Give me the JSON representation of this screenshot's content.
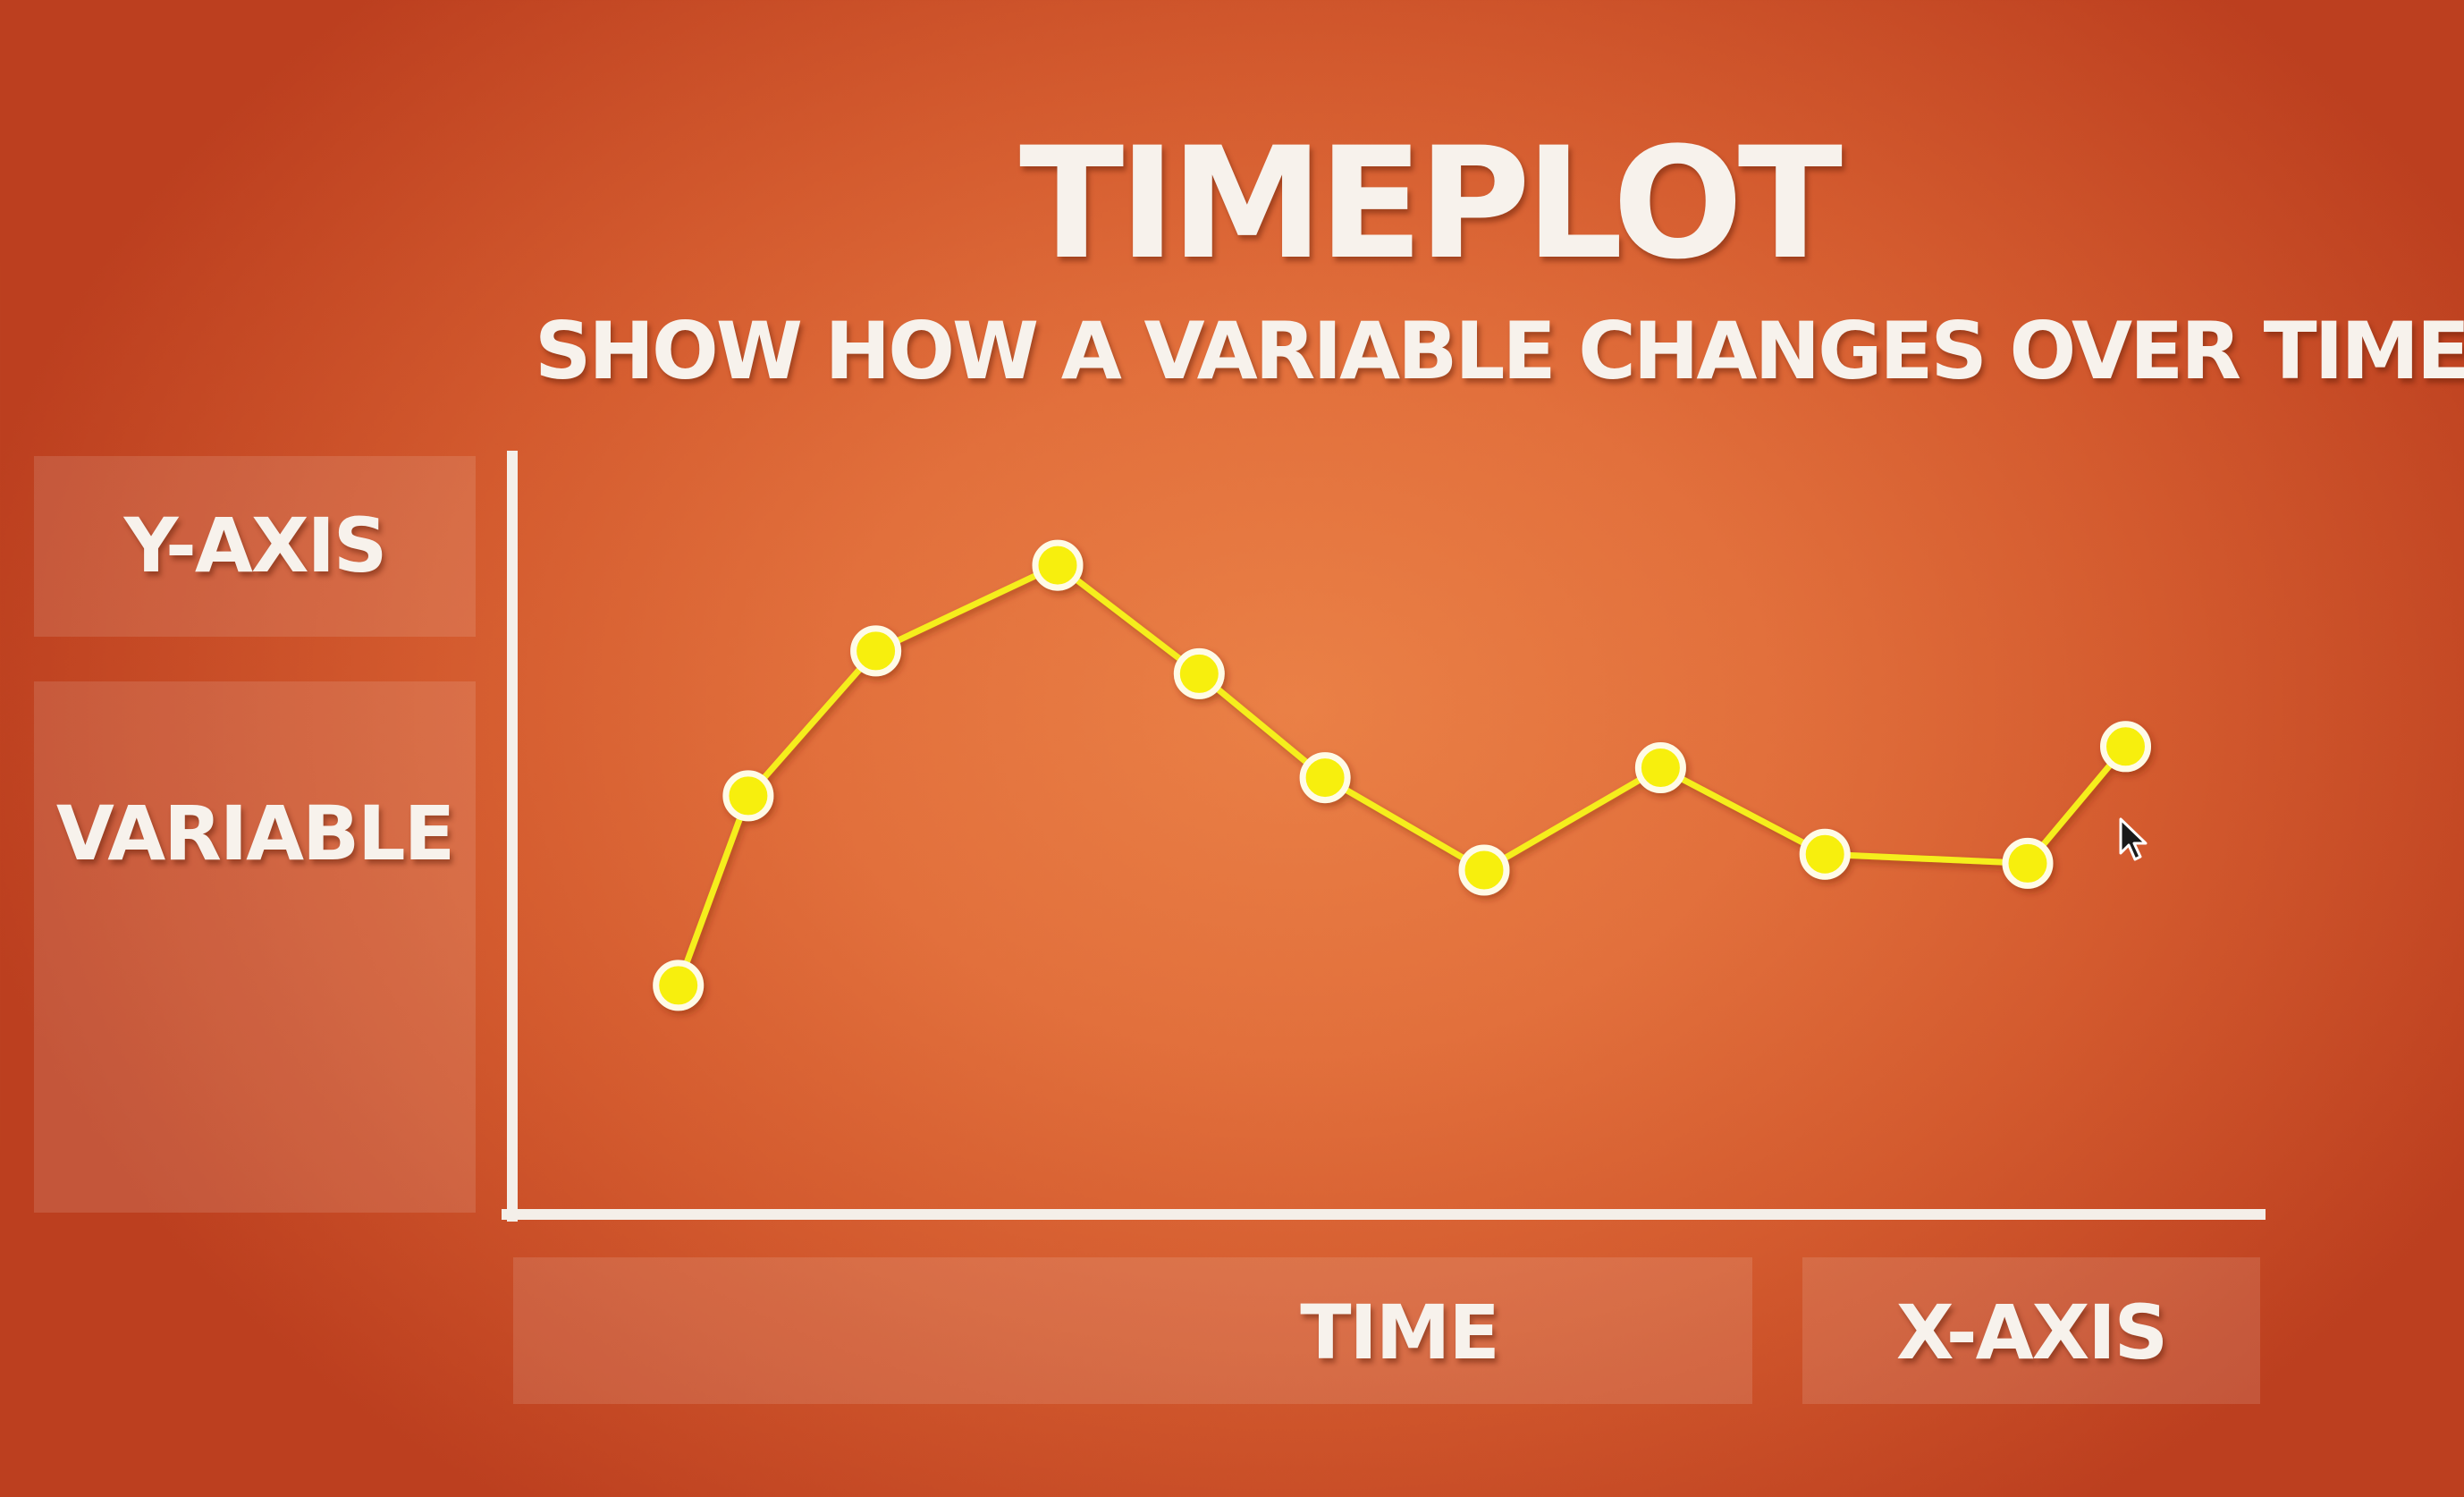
{
  "header": {
    "title": "TIMEPLOT",
    "subtitle": "SHOW HOW A VARIABLE CHANGES OVER TIME"
  },
  "labels": {
    "y_axis": "Y-AXIS",
    "variable": "VARIABLE",
    "time": "TIME",
    "x_axis": "X-AXIS"
  },
  "colors": {
    "line": "#f5ee1c",
    "point": "#f7ef10",
    "axis": "#f4efe9"
  },
  "chart_data": {
    "type": "line",
    "title": "TIMEPLOT",
    "subtitle": "SHOW HOW A VARIABLE CHANGES OVER TIME",
    "xlabel": "TIME",
    "ylabel": "VARIABLE",
    "grid": false,
    "x_ticks_shown": false,
    "y_ticks_shown": false,
    "xlim": [
      0,
      100
    ],
    "ylim": [
      0,
      100
    ],
    "series": [
      {
        "x": [
          9.5,
          13.5,
          20.8,
          31.2,
          39.3,
          46.5,
          55.6,
          65.7,
          75.1,
          86.7,
          92.3
        ],
        "y": [
          30.2,
          55.2,
          74.3,
          85.6,
          71.3,
          57.6,
          45.4,
          58.9,
          47.5,
          46.3,
          61.7
        ]
      }
    ]
  }
}
